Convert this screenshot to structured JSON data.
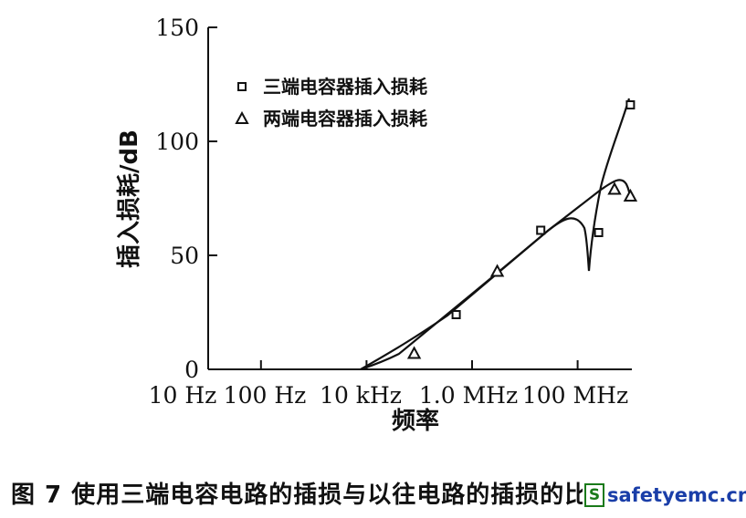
{
  "chart_data": {
    "type": "line",
    "xlabel": "频率",
    "ylabel": "插入损耗/dB",
    "x_ticks": [
      "10 Hz",
      "100 Hz",
      "10 kHz",
      "1.0 MHz",
      "100 MHz"
    ],
    "y_ticks": [
      "0",
      "50",
      "100",
      "150"
    ],
    "ylim": [
      0,
      150
    ],
    "legend_position": "top-left",
    "series": [
      {
        "name": "三端电容器插入损耗",
        "marker": "square",
        "x": [
          "10 kHz",
          "500 kHz",
          "20 MHz",
          "250 MHz",
          "1 GHz"
        ],
        "y": [
          0,
          24,
          61,
          60,
          116
        ]
      },
      {
        "name": "两端电容器插入损耗",
        "marker": "triangle",
        "x": [
          "10 kHz",
          "80 kHz",
          "3 MHz",
          "500 MHz",
          "1 GHz"
        ],
        "y": [
          0,
          7,
          43,
          79,
          76
        ]
      }
    ]
  },
  "caption": "图 7   使用三端电容电路的插损与以往电路的插损的比较",
  "watermark": {
    "logo": "S",
    "text": "safetyemc.cn"
  }
}
